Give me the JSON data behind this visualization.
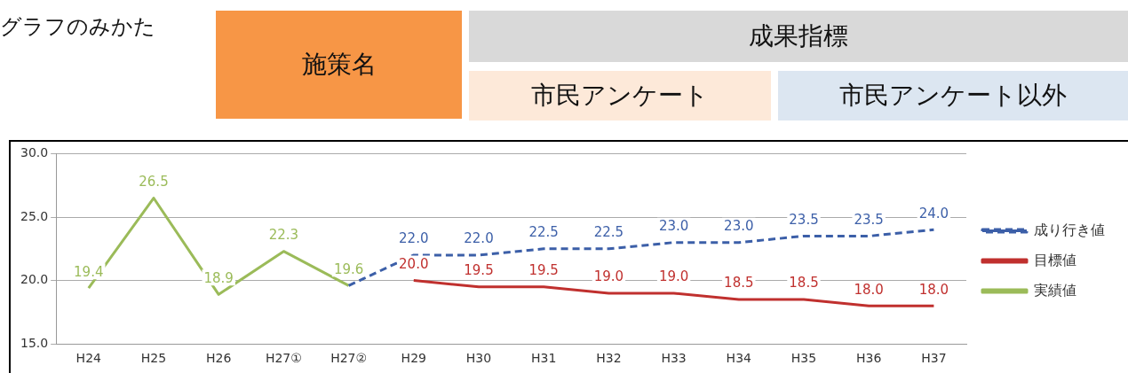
{
  "chart_data": {
    "type": "line",
    "title": "グラフのみかた",
    "annotations": [
      "施策名",
      "成果指標",
      "市民アンケート",
      "市民アンケート以外"
    ],
    "categories": [
      "H24",
      "H25",
      "H26",
      "H27①",
      "H27②",
      "H29",
      "H30",
      "H31",
      "H32",
      "H33",
      "H34",
      "H35",
      "H36",
      "H37"
    ],
    "series": [
      {
        "name": "成り行き値",
        "color": "#3c5fa8",
        "line_style": "dashed",
        "values": [
          null,
          null,
          null,
          null,
          19.6,
          22.0,
          22.0,
          22.5,
          22.5,
          23.0,
          23.0,
          23.5,
          23.5,
          24.0
        ],
        "value_labels": [
          null,
          null,
          null,
          null,
          null,
          "22.0",
          "22.0",
          "22.5",
          "22.5",
          "23.0",
          "23.0",
          "23.5",
          "23.5",
          "24.0"
        ]
      },
      {
        "name": "目標値",
        "color": "#c0302e",
        "line_style": "solid",
        "values": [
          null,
          null,
          null,
          null,
          null,
          20.0,
          19.5,
          19.5,
          19.0,
          19.0,
          18.5,
          18.5,
          18.0,
          18.0
        ],
        "value_labels": [
          null,
          null,
          null,
          null,
          null,
          "20.0",
          "19.5",
          "19.5",
          "19.0",
          "19.0",
          "18.5",
          "18.5",
          "18.0",
          "18.0"
        ]
      },
      {
        "name": "実績値",
        "color": "#9bbb59",
        "line_style": "solid",
        "values": [
          19.4,
          26.5,
          18.9,
          22.3,
          19.6,
          null,
          null,
          null,
          null,
          null,
          null,
          null,
          null,
          null
        ],
        "value_labels": [
          "19.4",
          "26.5",
          "18.9",
          "22.3",
          "19.6",
          null,
          null,
          null,
          null,
          null,
          null,
          null,
          null,
          null
        ]
      }
    ],
    "ylim": [
      15,
      30
    ],
    "yticks": [
      {
        "value": 15,
        "label": "15.0"
      },
      {
        "value": 20,
        "label": "20.0"
      },
      {
        "value": 25,
        "label": "25.0"
      },
      {
        "value": 30,
        "label": "30.0"
      }
    ],
    "grid": "y",
    "legend": "right",
    "marker": "none"
  }
}
